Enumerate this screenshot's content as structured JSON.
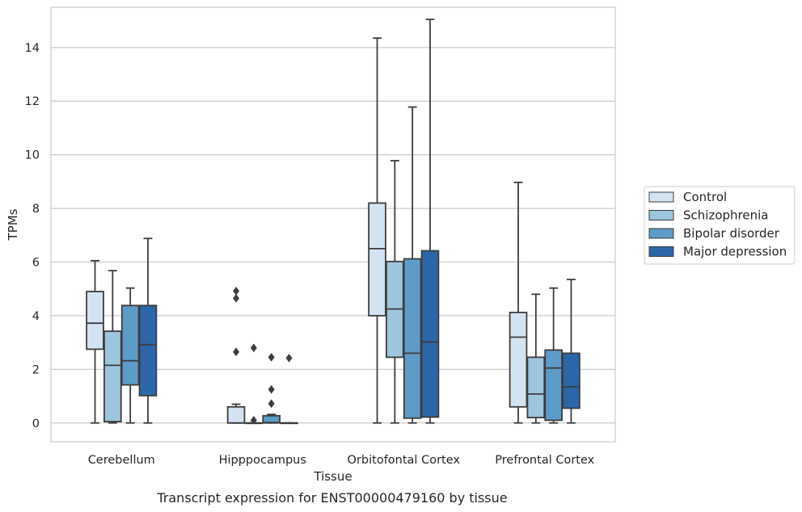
{
  "chart_data": {
    "type": "box",
    "title": "",
    "caption": "Transcript expression for ENST00000479160 by tissue",
    "xlabel": "Tissue",
    "ylabel": "TPMs",
    "ylim": [
      -0.7,
      15.5
    ],
    "yticks": [
      0,
      2,
      4,
      6,
      8,
      10,
      12,
      14
    ],
    "grid": true,
    "legend_position": "right",
    "categories": [
      "Cerebellum",
      "Hipppocampus",
      "Orbitofontal Cortex",
      "Prefrontal Cortex"
    ],
    "series": [
      {
        "name": "Control",
        "color": "#d4e3f2",
        "boxes": [
          {
            "whislo": 0.0,
            "q1": 2.75,
            "med": 3.72,
            "q3": 4.9,
            "whishi": 6.05,
            "fliers": []
          },
          {
            "whislo": 0.0,
            "q1": 0.0,
            "med": 0.0,
            "q3": 0.6,
            "whishi": 0.7,
            "fliers": [
              2.65,
              4.65,
              4.92
            ]
          },
          {
            "whislo": 0.0,
            "q1": 4.0,
            "med": 6.5,
            "q3": 8.2,
            "whishi": 14.35,
            "fliers": []
          },
          {
            "whislo": 0.0,
            "q1": 0.6,
            "med": 3.2,
            "q3": 4.12,
            "whishi": 8.97,
            "fliers": []
          }
        ]
      },
      {
        "name": "Schizophrenia",
        "color": "#9dc5de",
        "boxes": [
          {
            "whislo": 0.0,
            "q1": 0.05,
            "med": 2.15,
            "q3": 3.42,
            "whishi": 5.68,
            "fliers": []
          },
          {
            "whislo": 0.0,
            "q1": 0.0,
            "med": 0.0,
            "q3": 0.0,
            "whishi": 0.0,
            "fliers": [
              0.1,
              2.8
            ]
          },
          {
            "whislo": 0.0,
            "q1": 2.45,
            "med": 4.25,
            "q3": 6.02,
            "whishi": 9.78,
            "fliers": []
          },
          {
            "whislo": 0.0,
            "q1": 0.2,
            "med": 1.08,
            "q3": 2.45,
            "whishi": 4.8,
            "fliers": []
          }
        ]
      },
      {
        "name": "Bipolar disorder",
        "color": "#5d9bc8",
        "boxes": [
          {
            "whislo": 0.0,
            "q1": 1.42,
            "med": 2.32,
            "q3": 4.38,
            "whishi": 5.03,
            "fliers": []
          },
          {
            "whislo": 0.0,
            "q1": 0.0,
            "med": 0.02,
            "q3": 0.27,
            "whishi": 0.32,
            "fliers": [
              0.72,
              1.25,
              2.45
            ]
          },
          {
            "whislo": 0.0,
            "q1": 0.18,
            "med": 2.6,
            "q3": 6.12,
            "whishi": 11.78,
            "fliers": []
          },
          {
            "whislo": 0.0,
            "q1": 0.1,
            "med": 2.05,
            "q3": 2.72,
            "whishi": 5.03,
            "fliers": []
          }
        ]
      },
      {
        "name": "Major depression",
        "color": "#2b66a8",
        "boxes": [
          {
            "whislo": 0.0,
            "q1": 1.02,
            "med": 2.92,
            "q3": 4.38,
            "whishi": 6.88,
            "fliers": []
          },
          {
            "whislo": 0.0,
            "q1": 0.0,
            "med": 0.0,
            "q3": 0.0,
            "whishi": 0.0,
            "fliers": [
              2.42
            ]
          },
          {
            "whislo": 0.0,
            "q1": 0.22,
            "med": 3.02,
            "q3": 6.42,
            "whishi": 15.05,
            "fliers": []
          },
          {
            "whislo": 0.0,
            "q1": 0.55,
            "med": 1.35,
            "q3": 2.6,
            "whishi": 5.35,
            "fliers": []
          }
        ]
      }
    ]
  }
}
